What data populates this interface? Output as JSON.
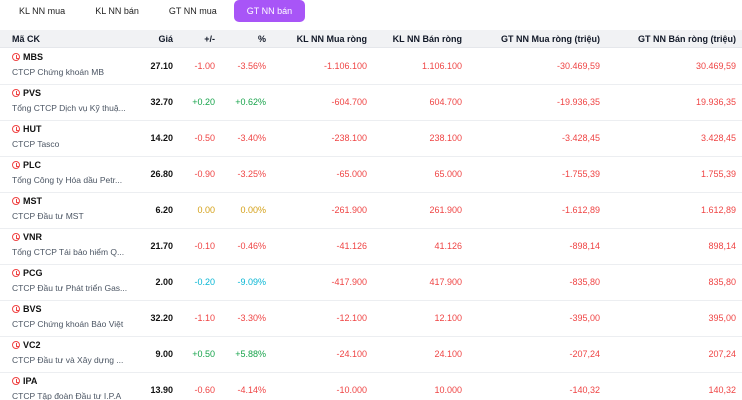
{
  "tabs": [
    {
      "label": "KL NN mua",
      "active": false
    },
    {
      "label": "KL NN bán",
      "active": false
    },
    {
      "label": "GT NN mua",
      "active": false
    },
    {
      "label": "GT NN bán",
      "active": true
    }
  ],
  "columns": {
    "symbol": "Mã CK",
    "price": "Giá",
    "change": "+/-",
    "percent": "%",
    "kl_net_buy": "KL NN Mua ròng",
    "kl_net_sell": "KL NN Bán ròng",
    "gt_net_buy": "GT NN Mua ròng (triệu)",
    "gt_net_sell": "GT NN Bán ròng (triệu)"
  },
  "colors": {
    "accent": "#a855f7",
    "down": "#ef4444",
    "up": "#16a34a",
    "reference": "#d4a017",
    "floor": "#06b6d4"
  },
  "rows": [
    {
      "symbol": "MBS",
      "company": "CTCP Chứng khoán MB",
      "price": "27.10",
      "change": "-1.00",
      "percent": "-3.56%",
      "kl_buy": "-1.106.100",
      "kl_sell": "1.106.100",
      "gt_buy": "-30.469,59",
      "gt_sell": "30.469,59",
      "color": "red"
    },
    {
      "symbol": "PVS",
      "company": "Tổng CTCP Dịch vụ Kỹ thuậ...",
      "price": "32.70",
      "change": "+0.20",
      "percent": "+0.62%",
      "kl_buy": "-604.700",
      "kl_sell": "604.700",
      "gt_buy": "-19.936,35",
      "gt_sell": "19.936,35",
      "color": "green"
    },
    {
      "symbol": "HUT",
      "company": "CTCP Tasco",
      "price": "14.20",
      "change": "-0.50",
      "percent": "-3.40%",
      "kl_buy": "-238.100",
      "kl_sell": "238.100",
      "gt_buy": "-3.428,45",
      "gt_sell": "3.428,45",
      "color": "red"
    },
    {
      "symbol": "PLC",
      "company": "Tổng Công ty Hóa dầu Petr...",
      "price": "26.80",
      "change": "-0.90",
      "percent": "-3.25%",
      "kl_buy": "-65.000",
      "kl_sell": "65.000",
      "gt_buy": "-1.755,39",
      "gt_sell": "1.755,39",
      "color": "red"
    },
    {
      "symbol": "MST",
      "company": "CTCP Đầu tư MST",
      "price": "6.20",
      "change": "0.00",
      "percent": "0.00%",
      "kl_buy": "-261.900",
      "kl_sell": "261.900",
      "gt_buy": "-1.612,89",
      "gt_sell": "1.612,89",
      "color": "yellow"
    },
    {
      "symbol": "VNR",
      "company": "Tổng CTCP Tái bảo hiểm Q...",
      "price": "21.70",
      "change": "-0.10",
      "percent": "-0.46%",
      "kl_buy": "-41.126",
      "kl_sell": "41.126",
      "gt_buy": "-898,14",
      "gt_sell": "898,14",
      "color": "red"
    },
    {
      "symbol": "PCG",
      "company": "CTCP Đầu tư Phát triển Gas...",
      "price": "2.00",
      "change": "-0.20",
      "percent": "-9.09%",
      "kl_buy": "-417.900",
      "kl_sell": "417.900",
      "gt_buy": "-835,80",
      "gt_sell": "835,80",
      "color": "cyan"
    },
    {
      "symbol": "BVS",
      "company": "CTCP Chứng khoán Bảo Việt",
      "price": "32.20",
      "change": "-1.10",
      "percent": "-3.30%",
      "kl_buy": "-12.100",
      "kl_sell": "12.100",
      "gt_buy": "-395,00",
      "gt_sell": "395,00",
      "color": "red"
    },
    {
      "symbol": "VC2",
      "company": "CTCP Đầu tư và Xây dựng ...",
      "price": "9.00",
      "change": "+0.50",
      "percent": "+5.88%",
      "kl_buy": "-24.100",
      "kl_sell": "24.100",
      "gt_buy": "-207,24",
      "gt_sell": "207,24",
      "color": "green"
    },
    {
      "symbol": "IPA",
      "company": "CTCP Tập đoàn Đầu tư I.P.A",
      "price": "13.90",
      "change": "-0.60",
      "percent": "-4.14%",
      "kl_buy": "-10.000",
      "kl_sell": "10.000",
      "gt_buy": "-140,32",
      "gt_sell": "140,32",
      "color": "red"
    }
  ]
}
